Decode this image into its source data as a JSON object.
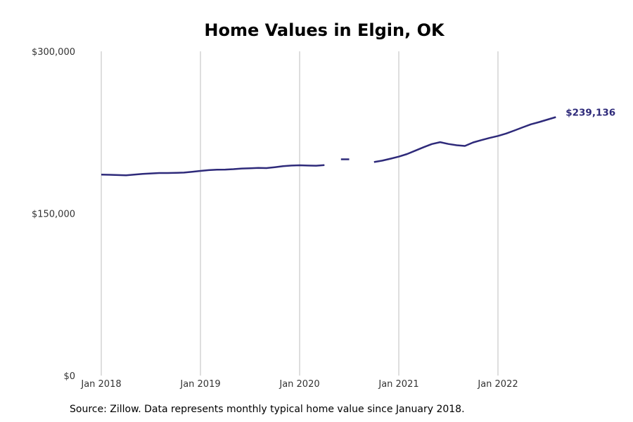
{
  "chart_data": {
    "type": "line",
    "title": "Home Values in Elgin, OK",
    "xlabel": "",
    "ylabel": "",
    "ylim": [
      0,
      300000
    ],
    "y_ticks": [
      {
        "value": 0,
        "label": "$0"
      },
      {
        "value": 150000,
        "label": "$150,000"
      },
      {
        "value": 300000,
        "label": "$300,000"
      }
    ],
    "x_ticks": [
      "Jan 2018",
      "Jan 2019",
      "Jan 2020",
      "Jan 2021",
      "Jan 2022"
    ],
    "grid": "vertical",
    "series": [
      {
        "color": "#2e2a7a",
        "values": [
          [
            "2018-01",
            186000
          ],
          [
            "2018-02",
            185800
          ],
          [
            "2018-03",
            185500
          ],
          [
            "2018-04",
            185300
          ],
          [
            "2018-05",
            185900
          ],
          [
            "2018-06",
            186600
          ],
          [
            "2018-07",
            187000
          ],
          [
            "2018-08",
            187400
          ],
          [
            "2018-09",
            187400
          ],
          [
            "2018-10",
            187600
          ],
          [
            "2018-11",
            187800
          ],
          [
            "2018-12",
            188500
          ],
          [
            "2019-01",
            189400
          ],
          [
            "2019-02",
            190100
          ],
          [
            "2019-03",
            190500
          ],
          [
            "2019-04",
            190600
          ],
          [
            "2019-05",
            191000
          ],
          [
            "2019-06",
            191600
          ],
          [
            "2019-07",
            191800
          ],
          [
            "2019-08",
            192100
          ],
          [
            "2019-09",
            192000
          ],
          [
            "2019-10",
            192800
          ],
          [
            "2019-11",
            193700
          ],
          [
            "2019-12",
            194300
          ],
          [
            "2020-01",
            194600
          ],
          [
            "2020-02",
            194300
          ],
          [
            "2020-03",
            194200
          ],
          [
            "2020-04",
            194700
          ],
          [
            "2020-05",
            null
          ],
          [
            "2020-06",
            200100
          ],
          [
            "2020-07",
            200100
          ],
          [
            "2020-08",
            null
          ],
          [
            "2020-09",
            null
          ],
          [
            "2020-10",
            197600
          ],
          [
            "2020-11",
            198900
          ],
          [
            "2020-12",
            200700
          ],
          [
            "2021-01",
            202600
          ],
          [
            "2021-02",
            205000
          ],
          [
            "2021-03",
            208100
          ],
          [
            "2021-04",
            211300
          ],
          [
            "2021-05",
            214200
          ],
          [
            "2021-06",
            216000
          ],
          [
            "2021-07",
            214300
          ],
          [
            "2021-08",
            213100
          ],
          [
            "2021-09",
            212500
          ],
          [
            "2021-10",
            215700
          ],
          [
            "2021-11",
            217900
          ],
          [
            "2021-12",
            219900
          ],
          [
            "2022-01",
            221700
          ],
          [
            "2022-02",
            224000
          ],
          [
            "2022-03",
            226800
          ],
          [
            "2022-04",
            229700
          ],
          [
            "2022-05",
            232500
          ],
          [
            "2022-06",
            234600
          ],
          [
            "2022-07",
            236900
          ],
          [
            "2022-08",
            239136
          ]
        ]
      }
    ],
    "end_label": "$239,136"
  },
  "source_text": "Source: Zillow. Data represents monthly typical home value since January 2018."
}
